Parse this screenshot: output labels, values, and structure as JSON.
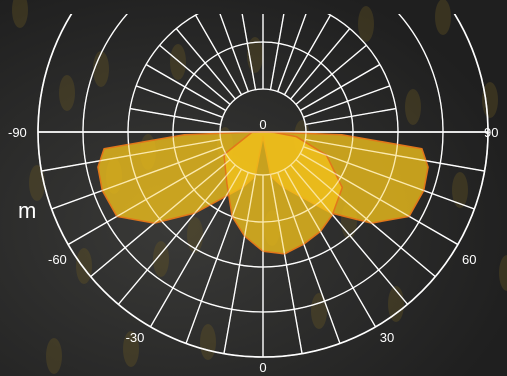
{
  "fragment_text": "m",
  "colors": {
    "background": "#2a2a2a",
    "grid": "#ffffff",
    "fill": "#f2c21b",
    "outline": "#e2761a"
  },
  "chart_data": {
    "type": "polar-luminous-intensity",
    "angle_range": [
      -90,
      90
    ],
    "tick_labels": [
      {
        "text": "-90",
        "angle": -90
      },
      {
        "text": "-60",
        "angle": -60
      },
      {
        "text": "-30",
        "angle": -30
      },
      {
        "text": "0",
        "angle": 0
      },
      {
        "text": "30",
        "angle": 30
      },
      {
        "text": "60",
        "angle": 60
      },
      {
        "text": "90",
        "angle": 90
      },
      {
        "text": "0",
        "angle": 180
      }
    ],
    "grid": true,
    "series": [
      {
        "curve": "plane-A",
        "points": [
          {
            "angle": 0,
            "r": 0.02
          },
          {
            "angle": 10,
            "r": 0.2
          },
          {
            "angle": 20,
            "r": 0.26
          },
          {
            "angle": 30,
            "r": 0.33
          },
          {
            "angle": 40,
            "r": 0.47
          },
          {
            "angle": 50,
            "r": 0.63
          },
          {
            "angle": 60,
            "r": 0.75
          },
          {
            "angle": 70,
            "r": 0.76
          },
          {
            "angle": 78,
            "r": 0.75
          },
          {
            "angle": 84,
            "r": 0.71
          },
          {
            "angle": 88,
            "r": 0.35
          },
          {
            "angle": 90,
            "r": 0.03
          },
          {
            "angle": 180,
            "r": 0.0
          }
        ]
      },
      {
        "curve": "plane-B",
        "points": [
          {
            "angle": -88,
            "r": 0.05
          },
          {
            "angle": -60,
            "r": 0.2
          },
          {
            "angle": -35,
            "r": 0.28
          },
          {
            "angle": -20,
            "r": 0.4
          },
          {
            "angle": -10,
            "r": 0.47
          },
          {
            "angle": 0,
            "r": 0.53
          },
          {
            "angle": 10,
            "r": 0.55
          },
          {
            "angle": 20,
            "r": 0.53
          },
          {
            "angle": 30,
            "r": 0.51
          },
          {
            "angle": 40,
            "r": 0.48
          },
          {
            "angle": 55,
            "r": 0.43
          },
          {
            "angle": 70,
            "r": 0.3
          },
          {
            "angle": 82,
            "r": 0.15
          },
          {
            "angle": 88,
            "r": 0.05
          }
        ]
      }
    ]
  }
}
